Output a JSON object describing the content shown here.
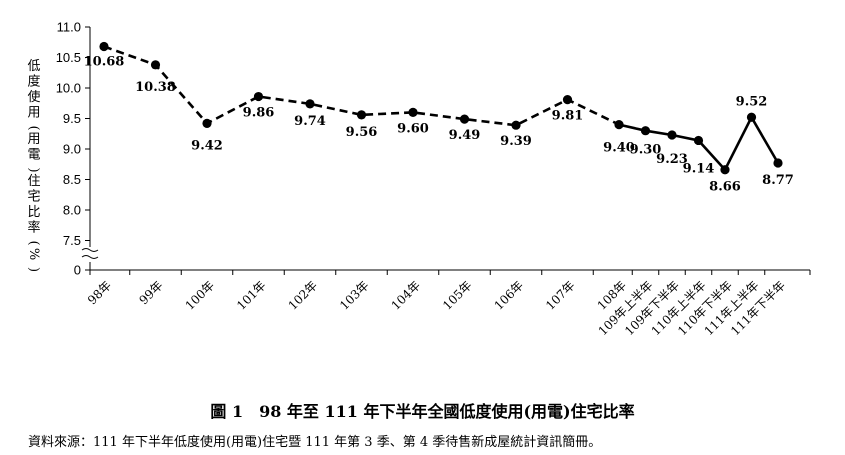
{
  "chart_data": {
    "type": "line",
    "ylabel": "低度使用(用電)住宅比率(%)",
    "ylim": [
      7.0,
      11.0
    ],
    "yticks": [
      "11.0",
      "10.5",
      "10.0",
      "9.5",
      "9.0",
      "8.5",
      "8.0",
      "7.5",
      "0"
    ],
    "categories": [
      "98年",
      "99年",
      "100年",
      "101年",
      "102年",
      "103年",
      "104年",
      "105年",
      "106年",
      "107年",
      "108年",
      "109年上半年",
      "109年下半年",
      "110年上半年",
      "110年下半年",
      "111年上半年",
      "111年下半年"
    ],
    "values": [
      10.68,
      10.38,
      9.42,
      9.86,
      9.74,
      9.56,
      9.6,
      9.49,
      9.39,
      9.81,
      9.4,
      9.3,
      9.23,
      9.14,
      8.66,
      9.52,
      8.77
    ],
    "value_labels": [
      "10.68",
      "10.38",
      "9.42",
      "9.86",
      "9.74",
      "9.56",
      "9.60",
      "9.49",
      "9.39",
      "9.81",
      "9.40",
      "9.30",
      "9.23",
      "9.14",
      "8.66",
      "9.52",
      "8.77"
    ],
    "annual_segment": "dashed",
    "semiannual_segment": "solid",
    "axis_break": true,
    "grid": false,
    "line_color": "#000000"
  },
  "caption": "圖 1　98 年至 111 年下半年全國低度使用(用電)住宅比率",
  "source": "資料來源：111 年下半年低度使用(用電)住宅暨 111 年第 3 季、第 4 季待售新成屋統計資訊簡冊。"
}
